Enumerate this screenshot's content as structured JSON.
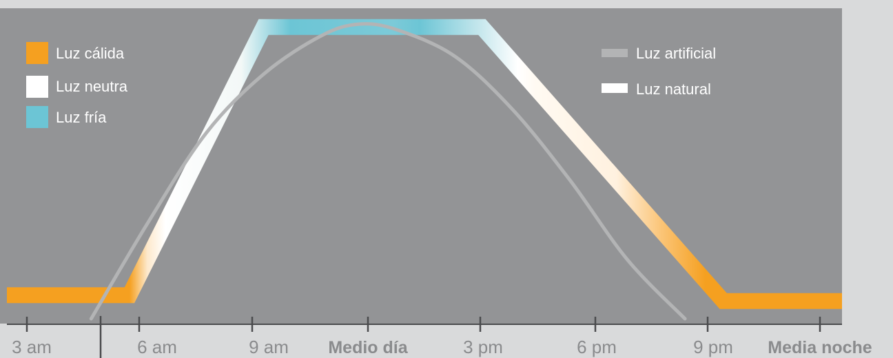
{
  "chart_data": {
    "type": "line",
    "title": "",
    "xlabel": "",
    "ylabel": "",
    "x_ticks": [
      "3 am",
      "6 am",
      "9 am",
      "Medio día",
      "3 pm",
      "6 pm",
      "9 pm",
      "Media noche"
    ],
    "x_range_hours": [
      2.8,
      24.6
    ],
    "ylim": [
      0,
      100
    ],
    "colors": {
      "background": "#d9dadb",
      "plot_area": "#939496",
      "warm": "#f5a020",
      "neutral": "#ffffff",
      "cold": "#6cc5d5",
      "artificial": "#b3b4b5",
      "axis": "#4a4b4d",
      "tick_label": "#8a8b8d"
    },
    "series": [
      {
        "name": "Luz artificial",
        "style": "warm-neutral-cold-gradient-band",
        "points": [
          [
            2.8,
            8
          ],
          [
            6.0,
            8
          ],
          [
            9.5,
            99
          ],
          [
            15.2,
            99
          ],
          [
            21.5,
            6
          ],
          [
            24.6,
            6
          ]
        ]
      },
      {
        "name": "Luz natural",
        "style": "gray-curve",
        "points": [
          [
            5.0,
            0
          ],
          [
            6.5,
            33
          ],
          [
            8.0,
            63
          ],
          [
            9.5,
            83
          ],
          [
            11.0,
            96
          ],
          [
            12.0,
            100
          ],
          [
            13.0,
            98
          ],
          [
            14.5,
            89
          ],
          [
            16.0,
            71
          ],
          [
            17.5,
            47
          ],
          [
            19.0,
            20
          ],
          [
            20.5,
            0
          ]
        ]
      }
    ],
    "legend": {
      "placement_left": "top-left",
      "placement_right": "top-right",
      "color_items": [
        {
          "label": "Luz cálida",
          "color": "#f5a020"
        },
        {
          "label": "Luz neutra",
          "color": "#ffffff"
        },
        {
          "label": "Luz fría",
          "color": "#6cc5d5"
        }
      ],
      "line_items": [
        {
          "label": "Luz artificial",
          "color": "#b3b4b5"
        },
        {
          "label": "Luz natural",
          "color": "#ffffff"
        }
      ]
    }
  }
}
